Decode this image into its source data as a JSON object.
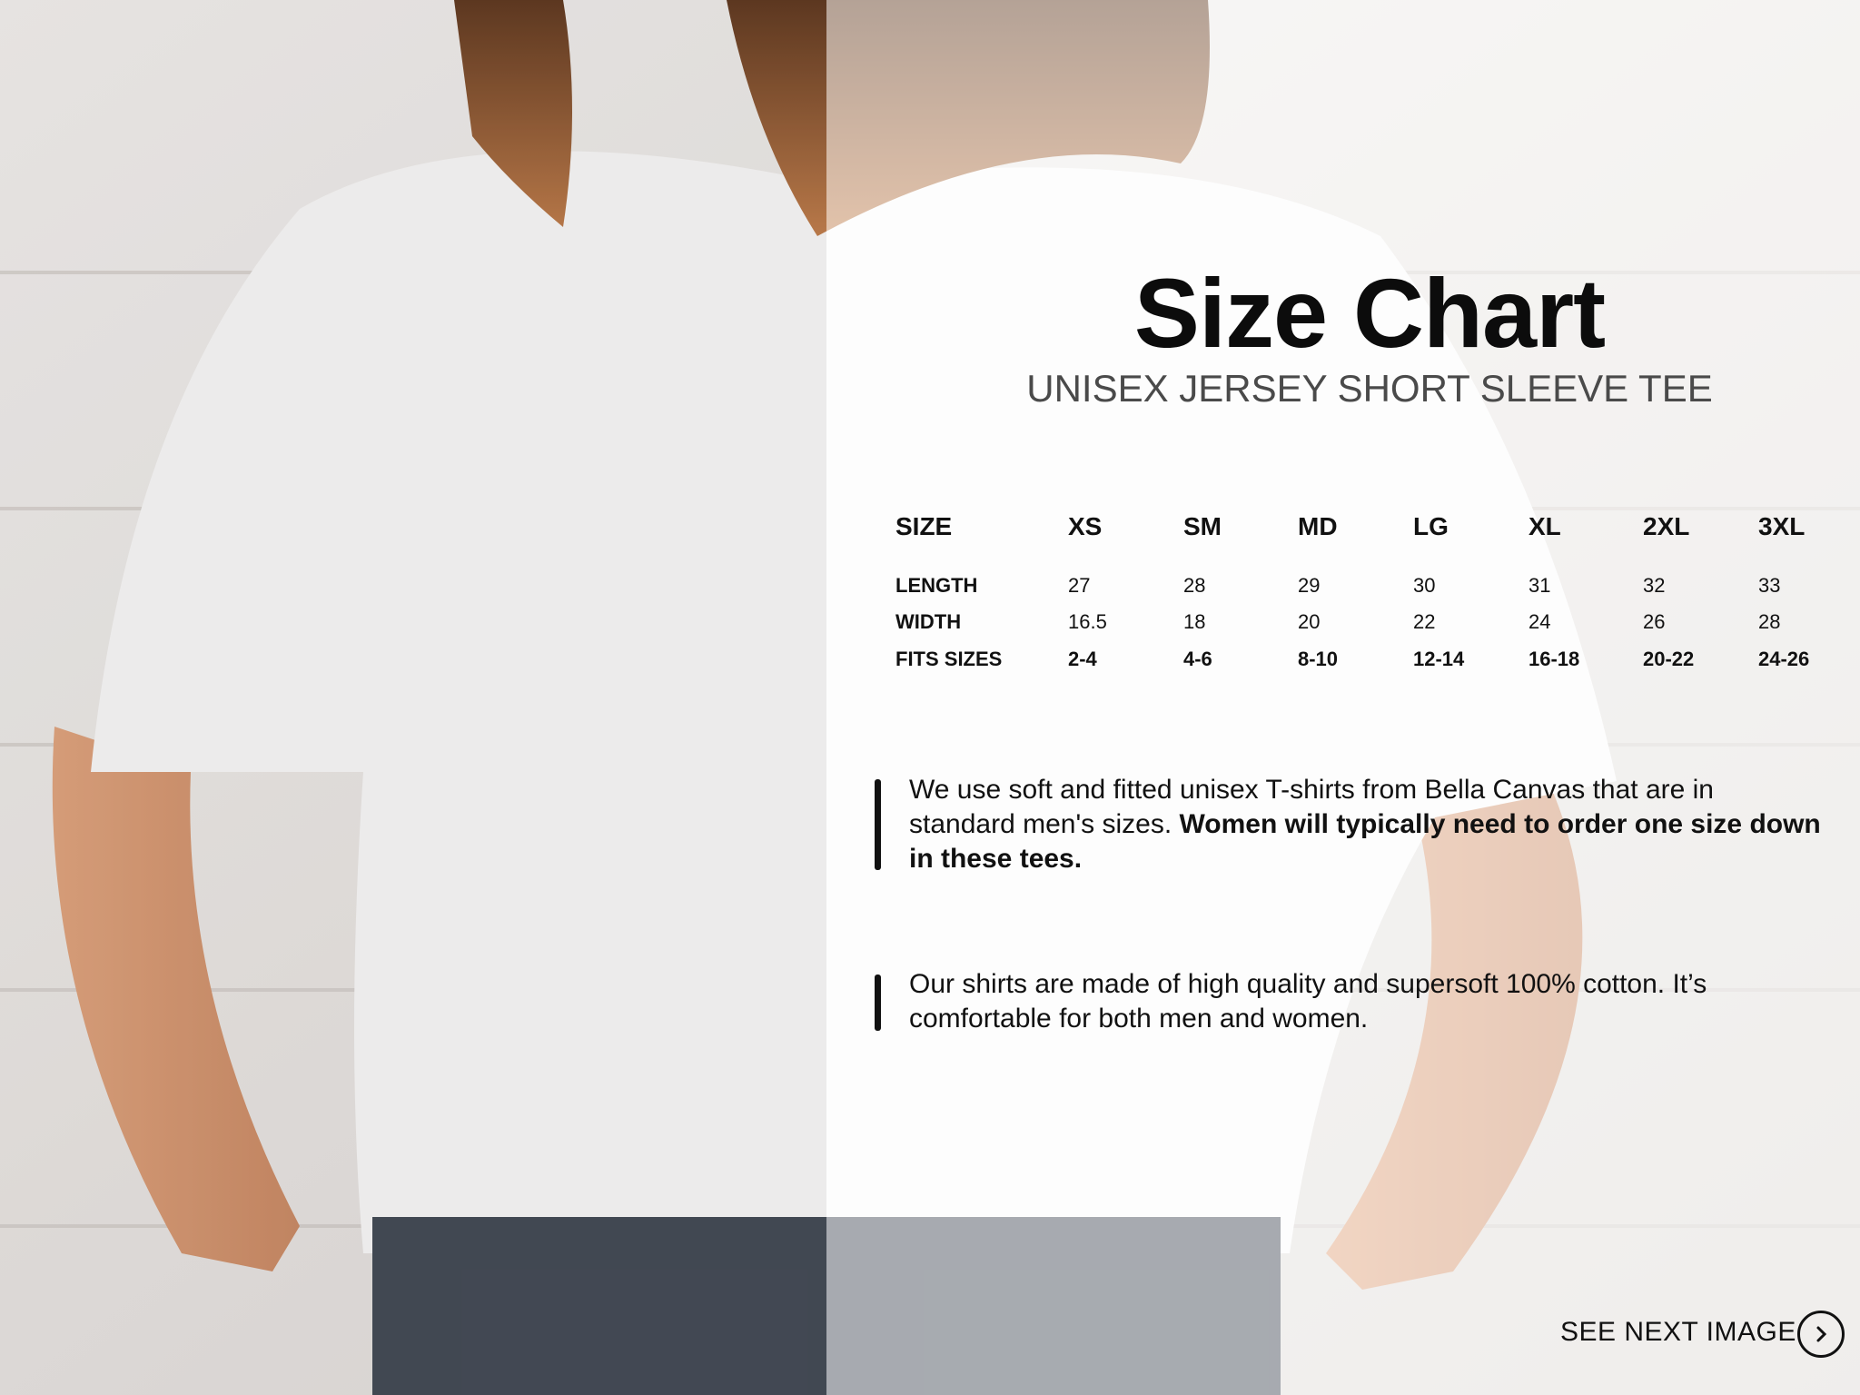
{
  "title": "Size Chart",
  "subtitle": "UNISEX JERSEY SHORT SLEEVE TEE",
  "table": {
    "headers": [
      "SIZE",
      "XS",
      "SM",
      "MD",
      "LG",
      "XL",
      "2XL",
      "3XL"
    ],
    "rows": [
      {
        "label": "LENGTH",
        "values": [
          "27",
          "28",
          "29",
          "30",
          "31",
          "32",
          "33"
        ]
      },
      {
        "label": "WIDTH",
        "values": [
          "16.5",
          "18",
          "20",
          "22",
          "24",
          "26",
          "28"
        ]
      },
      {
        "label": "FITS SIZES",
        "values": [
          "2-4",
          "4-6",
          "8-10",
          "12-14",
          "16-18",
          "20-22",
          "24-26"
        ]
      }
    ]
  },
  "notes": {
    "first_regular": "We use soft and fitted unisex T-shirts from Bella Canvas that are in standard men's sizes. ",
    "first_bold": "Women will typically need to order one size down in these tees.",
    "second": "Our shirts are made of high quality and supersoft 100% cotton. It’s comfortable for both men and women."
  },
  "next": {
    "label": "SEE NEXT IMAGE",
    "icon": "chevron-right-circle-icon"
  }
}
